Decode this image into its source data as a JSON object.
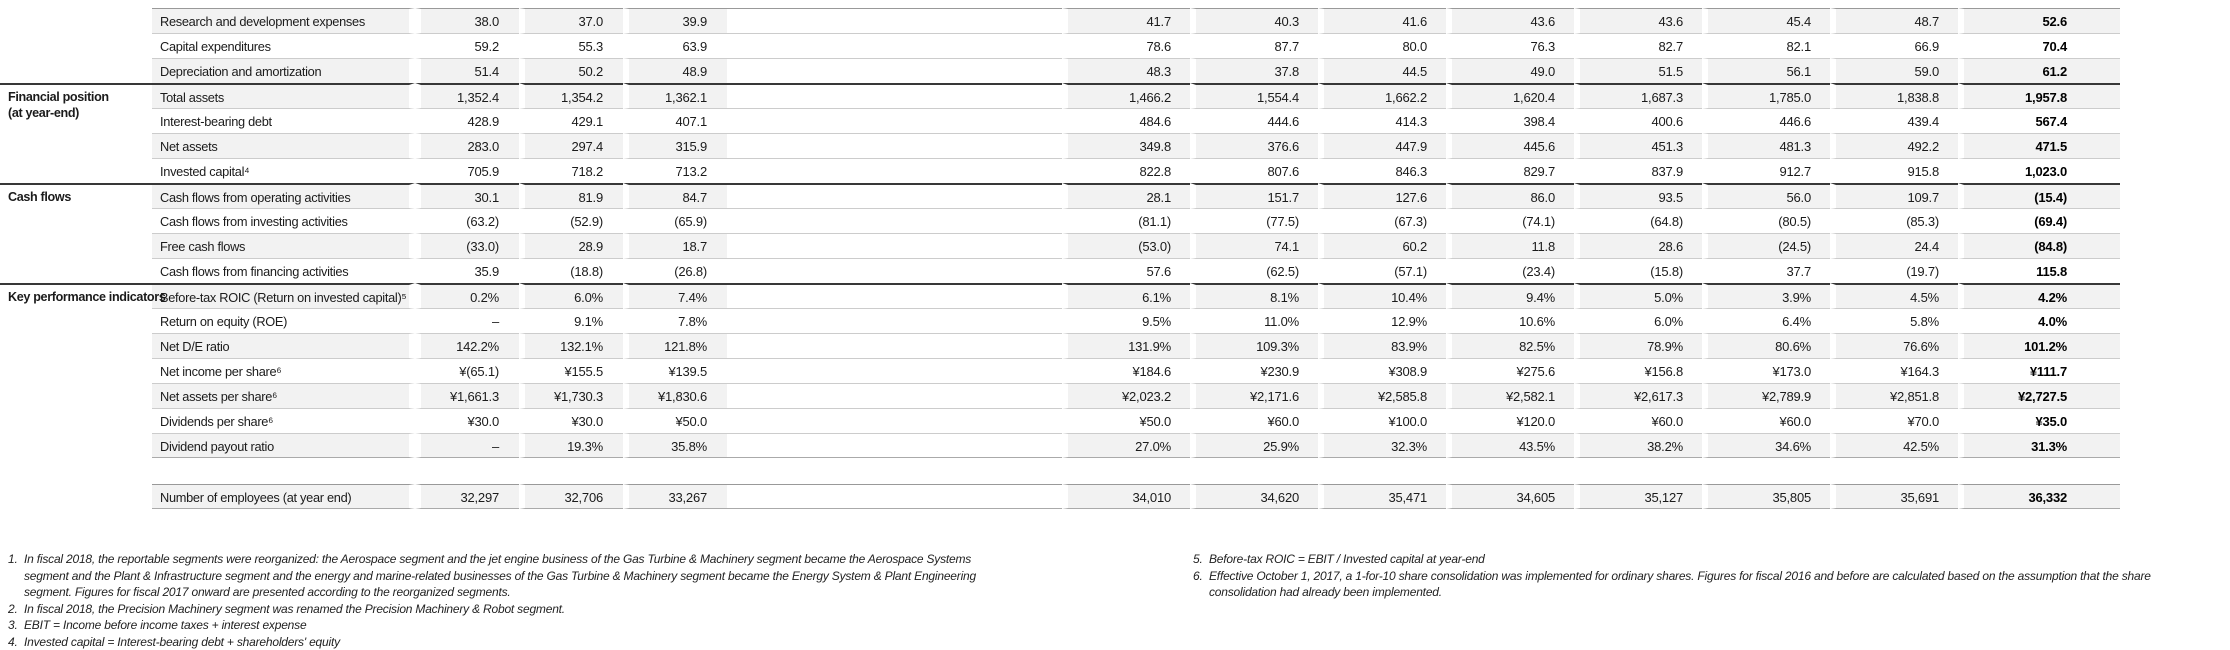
{
  "table": {
    "sections": [
      {
        "category_lines": [],
        "rows": [
          {
            "label": "Research and development expenses",
            "values": [
              "38.0",
              "37.0",
              "39.9",
              "41.7",
              "40.3",
              "41.6",
              "43.6",
              "43.6",
              "45.4",
              "48.7",
              "52.6"
            ]
          },
          {
            "label": "Capital expenditures",
            "values": [
              "59.2",
              "55.3",
              "63.9",
              "78.6",
              "87.7",
              "80.0",
              "76.3",
              "82.7",
              "82.1",
              "66.9",
              "70.4"
            ]
          },
          {
            "label": "Depreciation and amortization",
            "values": [
              "51.4",
              "50.2",
              "48.9",
              "48.3",
              "37.8",
              "44.5",
              "49.0",
              "51.5",
              "56.1",
              "59.0",
              "61.2"
            ]
          }
        ]
      },
      {
        "category_lines": [
          "Financial position",
          "(at year-end)"
        ],
        "rows": [
          {
            "label": "Total assets",
            "values": [
              "1,352.4",
              "1,354.2",
              "1,362.1",
              "1,466.2",
              "1,554.4",
              "1,662.2",
              "1,620.4",
              "1,687.3",
              "1,785.0",
              "1,838.8",
              "1,957.8"
            ]
          },
          {
            "label": "Interest-bearing debt",
            "values": [
              "428.9",
              "429.1",
              "407.1",
              "484.6",
              "444.6",
              "414.3",
              "398.4",
              "400.6",
              "446.6",
              "439.4",
              "567.4"
            ]
          },
          {
            "label": "Net assets",
            "values": [
              "283.0",
              "297.4",
              "315.9",
              "349.8",
              "376.6",
              "447.9",
              "445.6",
              "451.3",
              "481.3",
              "492.2",
              "471.5"
            ]
          },
          {
            "label": "Invested capital⁴",
            "values": [
              "705.9",
              "718.2",
              "713.2",
              "822.8",
              "807.6",
              "846.3",
              "829.7",
              "837.9",
              "912.7",
              "915.8",
              "1,023.0"
            ]
          }
        ]
      },
      {
        "category_lines": [
          "Cash flows"
        ],
        "rows": [
          {
            "label": "Cash flows from operating activities",
            "values": [
              "30.1",
              "81.9",
              "84.7",
              "28.1",
              "151.7",
              "127.6",
              "86.0",
              "93.5",
              "56.0",
              "109.7",
              "(15.4)"
            ]
          },
          {
            "label": "Cash flows from investing activities",
            "values": [
              "(63.2)",
              "(52.9)",
              "(65.9)",
              "(81.1)",
              "(77.5)",
              "(67.3)",
              "(74.1)",
              "(64.8)",
              "(80.5)",
              "(85.3)",
              "(69.4)"
            ]
          },
          {
            "label": "Free cash flows",
            "values": [
              "(33.0)",
              "28.9",
              "18.7",
              "(53.0)",
              "74.1",
              "60.2",
              "11.8",
              "28.6",
              "(24.5)",
              "24.4",
              "(84.8)"
            ]
          },
          {
            "label": "Cash flows from financing activities",
            "values": [
              "35.9",
              "(18.8)",
              "(26.8)",
              "57.6",
              "(62.5)",
              "(57.1)",
              "(23.4)",
              "(15.8)",
              "37.7",
              "(19.7)",
              "115.8"
            ]
          }
        ]
      },
      {
        "category_lines": [
          "Key performance indicators"
        ],
        "rows": [
          {
            "label": "Before-tax ROIC (Return on invested capital)⁵",
            "values": [
              "0.2%",
              "6.0%",
              "7.4%",
              "6.1%",
              "8.1%",
              "10.4%",
              "9.4%",
              "5.0%",
              "3.9%",
              "4.5%",
              "4.2%"
            ]
          },
          {
            "label": "Return on equity (ROE)",
            "values": [
              "–",
              "9.1%",
              "7.8%",
              "9.5%",
              "11.0%",
              "12.9%",
              "10.6%",
              "6.0%",
              "6.4%",
              "5.8%",
              "4.0%"
            ]
          },
          {
            "label": "Net D/E ratio",
            "values": [
              "142.2%",
              "132.1%",
              "121.8%",
              "131.9%",
              "109.3%",
              "83.9%",
              "82.5%",
              "78.9%",
              "80.6%",
              "76.6%",
              "101.2%"
            ]
          },
          {
            "label": "Net income per share⁶",
            "values": [
              "¥(65.1)",
              "¥155.5",
              "¥139.5",
              "¥184.6",
              "¥230.9",
              "¥308.9",
              "¥275.6",
              "¥156.8",
              "¥173.0",
              "¥164.3",
              "¥111.7"
            ]
          },
          {
            "label": "Net assets per share⁶",
            "values": [
              "¥1,661.3",
              "¥1,730.3",
              "¥1,830.6",
              "¥2,023.2",
              "¥2,171.6",
              "¥2,585.8",
              "¥2,582.1",
              "¥2,617.3",
              "¥2,789.9",
              "¥2,851.8",
              "¥2,727.5"
            ]
          },
          {
            "label": "Dividends per share⁶",
            "values": [
              "¥30.0",
              "¥30.0",
              "¥50.0",
              "¥50.0",
              "¥60.0",
              "¥100.0",
              "¥120.0",
              "¥60.0",
              "¥60.0",
              "¥70.0",
              "¥35.0"
            ]
          },
          {
            "label": "Dividend payout ratio",
            "values": [
              "–",
              "19.3%",
              "35.8%",
              "27.0%",
              "25.9%",
              "32.3%",
              "43.5%",
              "38.2%",
              "34.6%",
              "42.5%",
              "31.3%"
            ]
          }
        ]
      },
      {
        "category_lines": [],
        "gap_before": true,
        "rows": [
          {
            "label": "Number of employees (at year end)",
            "values": [
              "32,297",
              "32,706",
              "33,267",
              "34,010",
              "34,620",
              "35,471",
              "34,605",
              "35,127",
              "35,805",
              "35,691",
              "36,332"
            ]
          }
        ]
      }
    ]
  },
  "footnotes": {
    "left": [
      {
        "num": "1.",
        "text": "In fiscal 2018, the reportable segments were reorganized: the Aerospace segment and the jet engine business of the Gas Turbine & Machinery segment became the Aerospace Systems segment and the Plant & Infrastructure segment and the energy and marine-related businesses of the Gas Turbine & Machinery segment became the Energy System & Plant Engineering segment. Figures for fiscal 2017 onward are presented according to the reorganized segments."
      },
      {
        "num": "2.",
        "text": "In fiscal 2018, the Precision Machinery segment was renamed the Precision Machinery & Robot segment."
      },
      {
        "num": "3.",
        "text": "EBIT = Income before income taxes + interest expense"
      },
      {
        "num": "4.",
        "text": "Invested capital = Interest-bearing debt + shareholders' equity"
      }
    ],
    "right": [
      {
        "num": "5.",
        "text": "Before-tax ROIC = EBIT / Invested capital at year-end"
      },
      {
        "num": "6.",
        "text": "Effective October 1, 2017, a 1-for-10 share consolidation was implemented for ordinary shares. Figures for fiscal 2016 and before are calculated based on the assumption that the share consolidation had already been implemented."
      }
    ]
  },
  "colors": {
    "stripe": "#f2f2f2",
    "rule_light": "#cccccc",
    "rule_medium": "#999999",
    "rule_dark": "#383838",
    "text": "#1b1b1b"
  }
}
